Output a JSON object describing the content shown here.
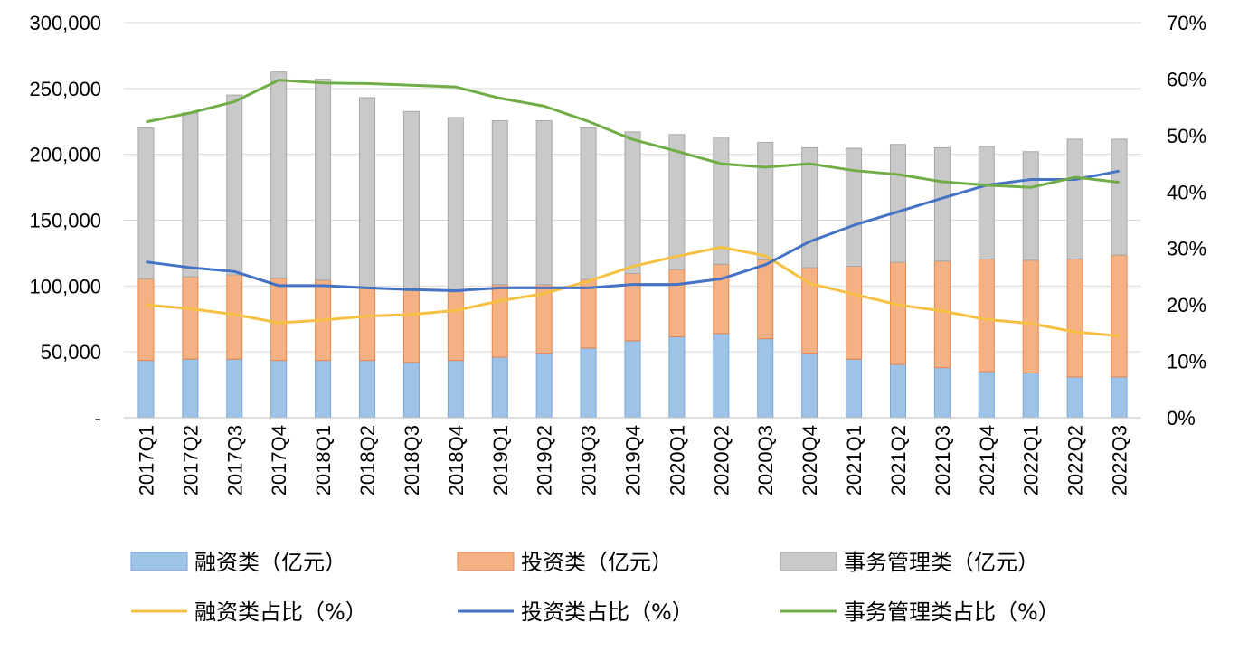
{
  "chart_data": {
    "type": "bar",
    "stacked": true,
    "categories": [
      "2017Q1",
      "2017Q2",
      "2017Q3",
      "2017Q4",
      "2018Q1",
      "2018Q2",
      "2018Q3",
      "2018Q4",
      "2019Q1",
      "2019Q2",
      "2019Q3",
      "2019Q4",
      "2020Q1",
      "2020Q2",
      "2020Q3",
      "2020Q4",
      "2021Q1",
      "2021Q2",
      "2021Q3",
      "2021Q4",
      "2022Q1",
      "2022Q2",
      "2022Q3"
    ],
    "left_axis": {
      "ylim": [
        0,
        300000
      ],
      "ticks": [
        0,
        50000,
        100000,
        150000,
        200000,
        250000,
        300000
      ],
      "tick_labels": [
        "-",
        "50,000",
        "100,000",
        "150,000",
        "200,000",
        "250,000",
        "300,000"
      ]
    },
    "right_axis": {
      "ylim": [
        0,
        70
      ],
      "ticks": [
        0,
        10,
        20,
        30,
        40,
        50,
        60,
        70
      ],
      "tick_labels": [
        "0%",
        "10%",
        "20%",
        "30%",
        "40%",
        "50%",
        "60%",
        "70%"
      ]
    },
    "bar_series": [
      {
        "name": "融资类（亿元）",
        "color": "#9dc3e6",
        "values": [
          43500,
          44500,
          44500,
          43500,
          43500,
          43500,
          42000,
          43500,
          46000,
          49000,
          53000,
          58500,
          61500,
          64000,
          60000,
          49000,
          44500,
          40500,
          38000,
          35000,
          34000,
          31000,
          31000
        ]
      },
      {
        "name": "投资类（亿元）",
        "color": "#f4b183",
        "values": [
          62000,
          62500,
          64000,
          62500,
          61000,
          55500,
          54500,
          52000,
          55000,
          52000,
          52000,
          51000,
          51000,
          52500,
          60000,
          65000,
          70500,
          77500,
          81000,
          85500,
          85500,
          89500,
          92500
        ]
      },
      {
        "name": "事务管理类（亿元）",
        "color": "#c9c9c9",
        "values": [
          114500,
          124500,
          136500,
          156500,
          152500,
          144000,
          136000,
          132500,
          124500,
          124500,
          115000,
          107500,
          102500,
          96500,
          89000,
          91000,
          89500,
          89500,
          86000,
          85500,
          82500,
          91000,
          88000
        ]
      }
    ],
    "line_series": [
      {
        "name": "融资类占比（%）",
        "color": "#f6c143",
        "values": [
          20.0,
          19.3,
          18.3,
          16.8,
          17.3,
          18.0,
          18.3,
          19.0,
          20.7,
          22.0,
          24.2,
          26.8,
          28.6,
          30.2,
          28.7,
          23.8,
          21.9,
          20.0,
          18.9,
          17.4,
          16.7,
          15.2,
          14.5
        ]
      },
      {
        "name": "投资类占比（%）",
        "color": "#4472c4",
        "values": [
          27.6,
          26.6,
          25.9,
          23.4,
          23.4,
          23.0,
          22.7,
          22.5,
          23.0,
          23.0,
          23.0,
          23.6,
          23.6,
          24.6,
          27.1,
          31.2,
          34.1,
          36.5,
          38.9,
          41.2,
          42.2,
          42.2,
          43.7
        ]
      },
      {
        "name": "事务管理类占比（%）",
        "color": "#70ad47",
        "values": [
          52.4,
          54.0,
          56.0,
          59.8,
          59.3,
          59.2,
          58.9,
          58.6,
          56.6,
          55.2,
          52.5,
          49.3,
          47.2,
          45.0,
          44.4,
          45.0,
          43.8,
          43.1,
          41.8,
          41.2,
          40.8,
          42.6,
          41.7
        ]
      }
    ],
    "legend": [
      {
        "label": "融资类（亿元）",
        "kind": "bar",
        "color": "#9dc3e6"
      },
      {
        "label": "投资类（亿元）",
        "kind": "bar",
        "color": "#f4b183"
      },
      {
        "label": "事务管理类（亿元）",
        "kind": "bar",
        "color": "#c9c9c9"
      },
      {
        "label": "融资类占比（%）",
        "kind": "line",
        "color": "#f6c143"
      },
      {
        "label": "投资类占比（%）",
        "kind": "line",
        "color": "#4472c4"
      },
      {
        "label": "事务管理类占比（%）",
        "kind": "line",
        "color": "#70ad47"
      }
    ],
    "legend_position": "bottom",
    "grid": true
  }
}
